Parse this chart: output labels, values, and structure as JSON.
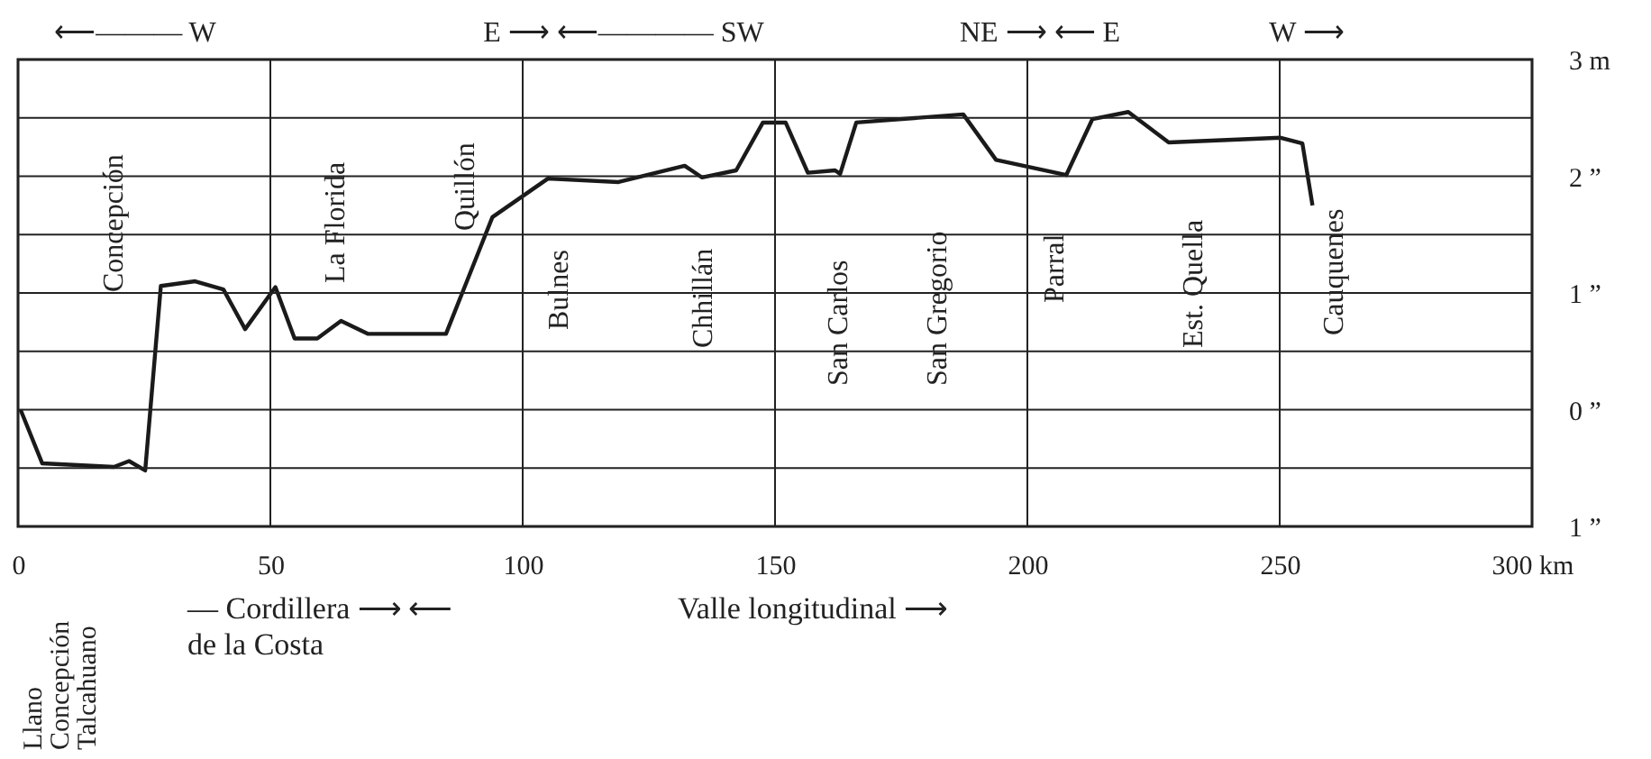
{
  "chart_data": {
    "type": "line",
    "x": [
      0.5,
      4.8,
      19.0,
      22.0,
      25.2,
      28.3,
      35.1,
      40.7,
      45.0,
      51.0,
      54.8,
      59.3,
      64.0,
      69.3,
      84.8,
      94.0,
      105.0,
      119.0,
      132.1,
      135.5,
      142.3,
      147.6,
      152.1,
      156.5,
      161.9,
      162.9,
      166.1,
      187.3,
      193.8,
      207.7,
      212.9,
      220.0,
      228.0,
      250.2,
      254.5,
      256.5
    ],
    "series": [
      {
        "color": "#1a1a1a",
        "values": [
          0.0,
          -0.46,
          -0.49,
          -0.44,
          -0.52,
          1.06,
          1.1,
          1.03,
          0.69,
          1.05,
          0.61,
          0.61,
          0.76,
          0.65,
          0.65,
          1.65,
          1.98,
          1.95,
          2.09,
          1.99,
          2.05,
          2.46,
          2.46,
          2.03,
          2.05,
          2.02,
          2.46,
          2.53,
          2.14,
          2.01,
          2.49,
          2.55,
          2.29,
          2.33,
          2.28,
          1.75
        ]
      }
    ],
    "xlim": [
      0,
      300
    ],
    "xticks": [
      0,
      50,
      100,
      150,
      200,
      250,
      {
        "value": 300,
        "label": "300 km"
      }
    ],
    "ylim": [
      -1,
      3
    ],
    "yticks": [
      {
        "value": 3,
        "label": "3 m"
      },
      {
        "value": 2.5,
        "label": null
      },
      {
        "value": 2,
        "label": "2 ”"
      },
      {
        "value": 1.5,
        "label": null
      },
      {
        "value": 1,
        "label": "1 ”"
      },
      {
        "value": 0.5,
        "label": null
      },
      {
        "value": 0,
        "label": "0 ”"
      },
      {
        "value": -0.5,
        "label": null
      },
      {
        "value": -1,
        "label": "1 ”"
      }
    ],
    "grid": true,
    "marker": "none",
    "line_style": "solid",
    "annotations": [
      "Concepción",
      "La Florida",
      "Quillón",
      "Bulnes",
      "Chhillán",
      "San Carlos",
      "San Gregorio",
      "Parral",
      "Est. Quella",
      "Cauquenes",
      "⟵——— W",
      "E ⟶ ⟵———— SW",
      "NE ⟶ ⟵ E",
      "W  ⟶",
      "Llano",
      "Concepción",
      "Talcahuano",
      "— Cordillera ⟶ ⟵\nde la Costa",
      "Valle longitudinal            ⟶"
    ]
  }
}
